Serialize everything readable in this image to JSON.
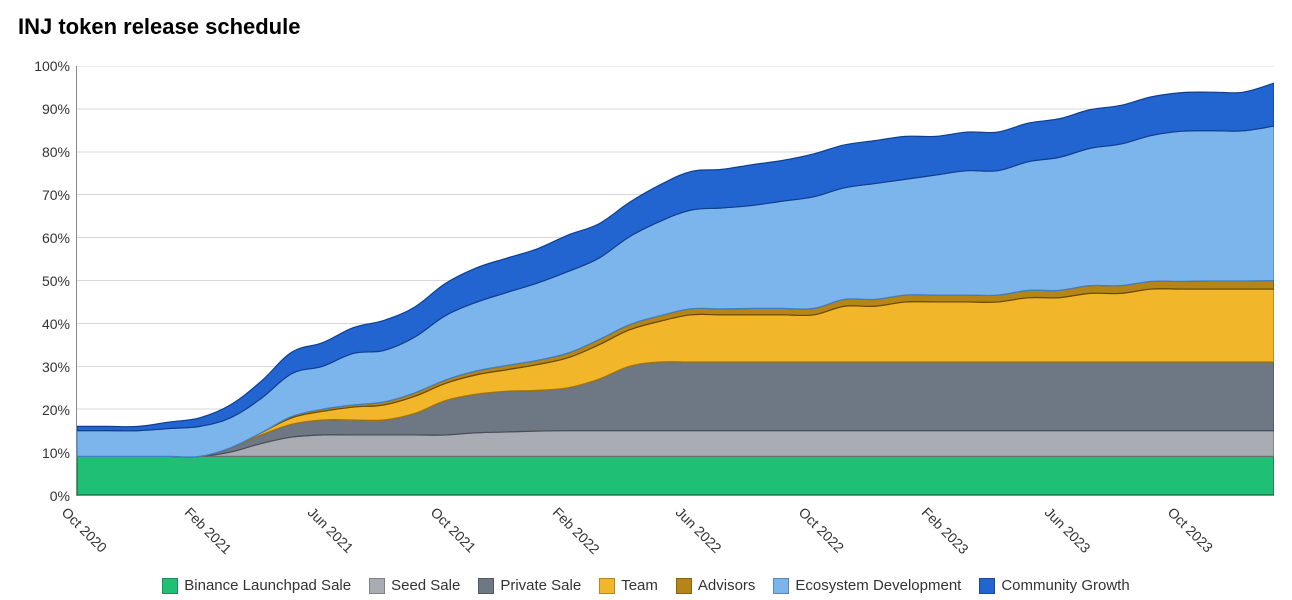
{
  "title": "INJ token release schedule",
  "chart": {
    "type": "stacked-area",
    "background_color": "#ffffff",
    "grid_color": "#d8d8d8",
    "axis_color": "#888888",
    "title_fontsize": 22,
    "tick_fontsize": 14,
    "legend_fontsize": 15,
    "stroke_width": 1.2,
    "ylim": [
      0,
      100
    ],
    "ytick_step": 10,
    "ytick_suffix": "%",
    "x_tick_labels": [
      "Oct 2020",
      "Feb 2021",
      "Jun 2021",
      "Oct 2021",
      "Feb 2022",
      "Jun 2022",
      "Oct 2022",
      "Feb 2023",
      "Jun 2023",
      "Oct 2023"
    ],
    "x_tick_positions": [
      0,
      4,
      8,
      12,
      16,
      20,
      24,
      28,
      32,
      36
    ],
    "x_point_count": 40,
    "series": [
      {
        "name": "Binance Launchpad Sale",
        "fill": "#1fbf75",
        "stroke": "#0c6b3f",
        "values": [
          9,
          9,
          9,
          9,
          9,
          9,
          9,
          9,
          9,
          9,
          9,
          9,
          9,
          9,
          9,
          9,
          9,
          9,
          9,
          9,
          9,
          9,
          9,
          9,
          9,
          9,
          9,
          9,
          9,
          9,
          9,
          9,
          9,
          9,
          9,
          9,
          9,
          9,
          9,
          9
        ]
      },
      {
        "name": "Seed Sale",
        "fill": "#a9acb2",
        "stroke": "#6b6e73",
        "values": [
          0,
          0,
          0,
          0,
          0,
          1,
          3,
          4.5,
          5,
          5,
          5,
          5,
          5,
          5.5,
          5.7,
          5.9,
          6,
          6,
          6,
          6,
          6,
          6,
          6,
          6,
          6,
          6,
          6,
          6,
          6,
          6,
          6,
          6,
          6,
          6,
          6,
          6,
          6,
          6,
          6,
          6
        ]
      },
      {
        "name": "Private Sale",
        "fill": "#6e7784",
        "stroke": "#474d56",
        "values": [
          0,
          0,
          0,
          0,
          0,
          1,
          2,
          3,
          3.5,
          3.5,
          3.5,
          5,
          8,
          9,
          9.5,
          9.5,
          10,
          12,
          15,
          16,
          16,
          16,
          16,
          16,
          16,
          16,
          16,
          16,
          16,
          16,
          16,
          16,
          16,
          16,
          16,
          16,
          16,
          16,
          16,
          16
        ]
      },
      {
        "name": "Team",
        "fill": "#f1b62a",
        "stroke": "#a87600",
        "values": [
          0,
          0,
          0,
          0,
          0,
          0,
          0.5,
          1.5,
          2,
          3,
          3.5,
          4,
          4,
          4.5,
          5,
          6,
          7,
          8,
          8.5,
          9.5,
          11,
          11,
          11,
          11,
          11,
          13,
          13,
          14,
          14,
          14,
          14,
          15,
          15,
          16,
          16,
          17,
          17,
          17,
          17,
          17
        ]
      },
      {
        "name": "Advisors",
        "fill": "#b58518",
        "stroke": "#6a4a00",
        "values": [
          0,
          0,
          0,
          0,
          0,
          0,
          0,
          0.3,
          0.5,
          0.5,
          0.7,
          0.8,
          0.8,
          0.9,
          1,
          1,
          1.1,
          1.2,
          1.2,
          1.3,
          1.4,
          1.4,
          1.5,
          1.5,
          1.5,
          1.6,
          1.6,
          1.6,
          1.6,
          1.6,
          1.6,
          1.7,
          1.7,
          1.8,
          1.8,
          1.8,
          1.8,
          1.9,
          1.9,
          2
        ]
      },
      {
        "name": "Ecosystem Development",
        "fill": "#7cb5ec",
        "stroke": "#3f7fc4",
        "values": [
          6,
          6,
          6,
          6.5,
          7,
          7,
          8,
          10,
          10,
          12,
          12,
          13,
          15,
          16,
          17,
          18,
          19,
          19,
          20.5,
          22,
          23,
          23.5,
          24,
          25,
          26,
          26,
          27,
          27,
          28,
          29,
          29,
          30,
          31,
          32,
          33,
          34,
          35,
          35,
          35,
          36
        ]
      },
      {
        "name": "Community Growth",
        "fill": "#2265d1",
        "stroke": "#103e8f",
        "values": [
          1,
          1,
          1,
          1.5,
          2,
          3,
          4,
          5,
          5.5,
          6,
          7,
          7,
          7.5,
          8,
          8,
          8,
          8.5,
          8,
          8,
          8.5,
          9,
          9,
          9.5,
          9.5,
          10,
          10,
          10,
          10,
          9,
          9,
          9,
          9,
          9,
          9,
          9,
          9,
          9,
          9,
          9,
          10
        ]
      }
    ]
  }
}
